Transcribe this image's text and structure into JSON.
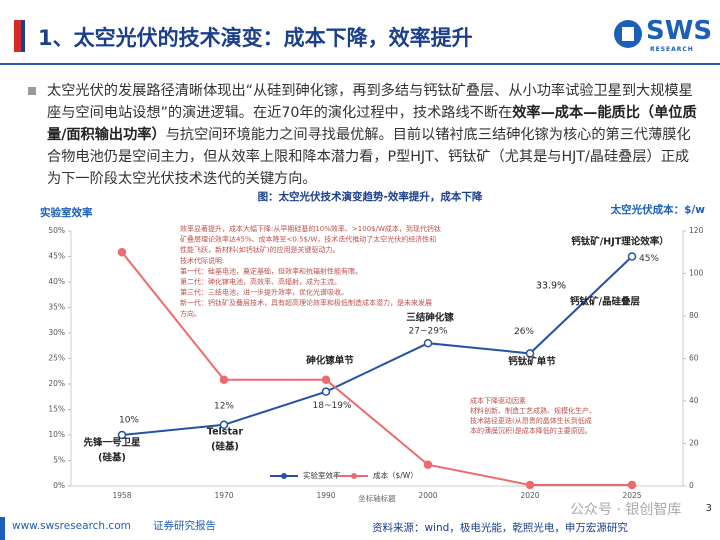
{
  "header": {
    "title": "1、太空光伏的技术演变：成本下降，效率提升",
    "logo": "SWS",
    "logo_sub": "RESEARCH"
  },
  "body": {
    "paragraph": [
      "太空光伏的发展路径清晰体现出“从硅到砷化镓，再到多结与钙钛矿叠层、从小功率试验卫星到大规模星座与空间电站设想”的演进逻辑。在近70年的演化过程中，技术路线不断在",
      "效率—成本—能质比（单位质量/面积输出功率）",
      "与抗空间环境能力之间寻找最优解。目前以锗衬底三结砷化镓为核心的第三代薄膜化合物电池仍是空间主力，但从效率上限和降本潜力看，P型HJT、钙钛矿（尤其是与HJT/晶硅叠层）正成为下一阶段太空光伏技术迭代的关键方向。"
    ]
  },
  "chart_data": {
    "type": "line",
    "title": "图：太空光伏技术演变趋势-效率提升，成本下降",
    "y_label": "实验室效率",
    "y2_label": "太空光伏成本：$/w",
    "x_label": "坐标轴标题",
    "categories": [
      "1958",
      "1970",
      "1990",
      "2000",
      "2020",
      "2025"
    ],
    "series": [
      {
        "name": "实验室效率",
        "color": "#2452a6",
        "values": [
          10,
          12,
          18.5,
          28,
          26,
          45
        ],
        "value_labels": [
          "10%",
          "12%",
          "18~19%",
          "27~29%",
          "26%",
          "45%"
        ]
      },
      {
        "name": "成本（$/W）",
        "color": "#ec6b6e",
        "axis": "y2",
        "values": [
          110,
          50,
          50,
          10,
          0.5,
          0.5
        ]
      }
    ],
    "ylim": [
      0,
      50
    ],
    "yticks": [
      {
        "value": 0,
        "label": "0%"
      },
      {
        "value": 5,
        "label": "5%"
      },
      {
        "value": 10,
        "label": "10%"
      },
      {
        "value": 15,
        "label": "15%"
      },
      {
        "value": 20,
        "label": "20%"
      },
      {
        "value": 25,
        "label": "25%"
      },
      {
        "value": 30,
        "label": "30%"
      },
      {
        "value": 35,
        "label": "35%"
      },
      {
        "value": 40,
        "label": "40%"
      },
      {
        "value": 45,
        "label": "45%"
      },
      {
        "value": 50,
        "label": "50%"
      }
    ],
    "y2lim": [
      0,
      120
    ],
    "y2ticks": [
      0,
      20,
      40,
      60,
      80,
      100,
      120
    ],
    "point_labels": [
      [
        "先锋一号卫星",
        "(硅基)"
      ],
      [
        "Telstar",
        "(硅基)"
      ],
      [
        "砷化镓单节"
      ],
      [
        "三结砷化镓"
      ],
      [
        "钙钛矿单节"
      ],
      [
        "钙钛矿/HJT理论效率）"
      ],
      [
        "钙钛矿/晶硅叠层"
      ],
      [
        "33.9%"
      ]
    ],
    "notes": [
      [
        "效率显著提升，成本大幅下降:从早期硅基的10%效率、>100$/W成本，到现代钙钛",
        "矿叠层理论效率达45%、成本降至<0.5$/W，技术迭代推动了太空光伏的经济性和",
        "性能飞跃，新材料(如钙钛矿)的应用是关键驱动力。",
        "技术代际说明:",
        "第一代：硅基电池，奠定基础，但效率和抗辐射性能有限。",
        "第二代：砷化镓电池，高效率、高辐射，成为主流。",
        "第三代：三结电池，进一步提升效率，优化光谱吸收。",
        "新一代：钙钛矿及叠层技术，具有超高理论效率和极低制造成本潜力，是未来发展",
        "方向。"
      ],
      [
        "成本下降驱动因素",
        "材料创新、制造工艺成熟、规模化生产、",
        "技术路径更迭(从昂贵的晶体生长到低成",
        "本的薄膜沉积)是成本降低的主要原因。"
      ]
    ]
  },
  "footer": {
    "site": "www.swsresearch.com",
    "kind": "证券研究报告",
    "source": "资料来源：wind，极电光能，乾照光电，申万宏源研究",
    "page": "3",
    "watermark": "公众号 · 银创智库"
  }
}
